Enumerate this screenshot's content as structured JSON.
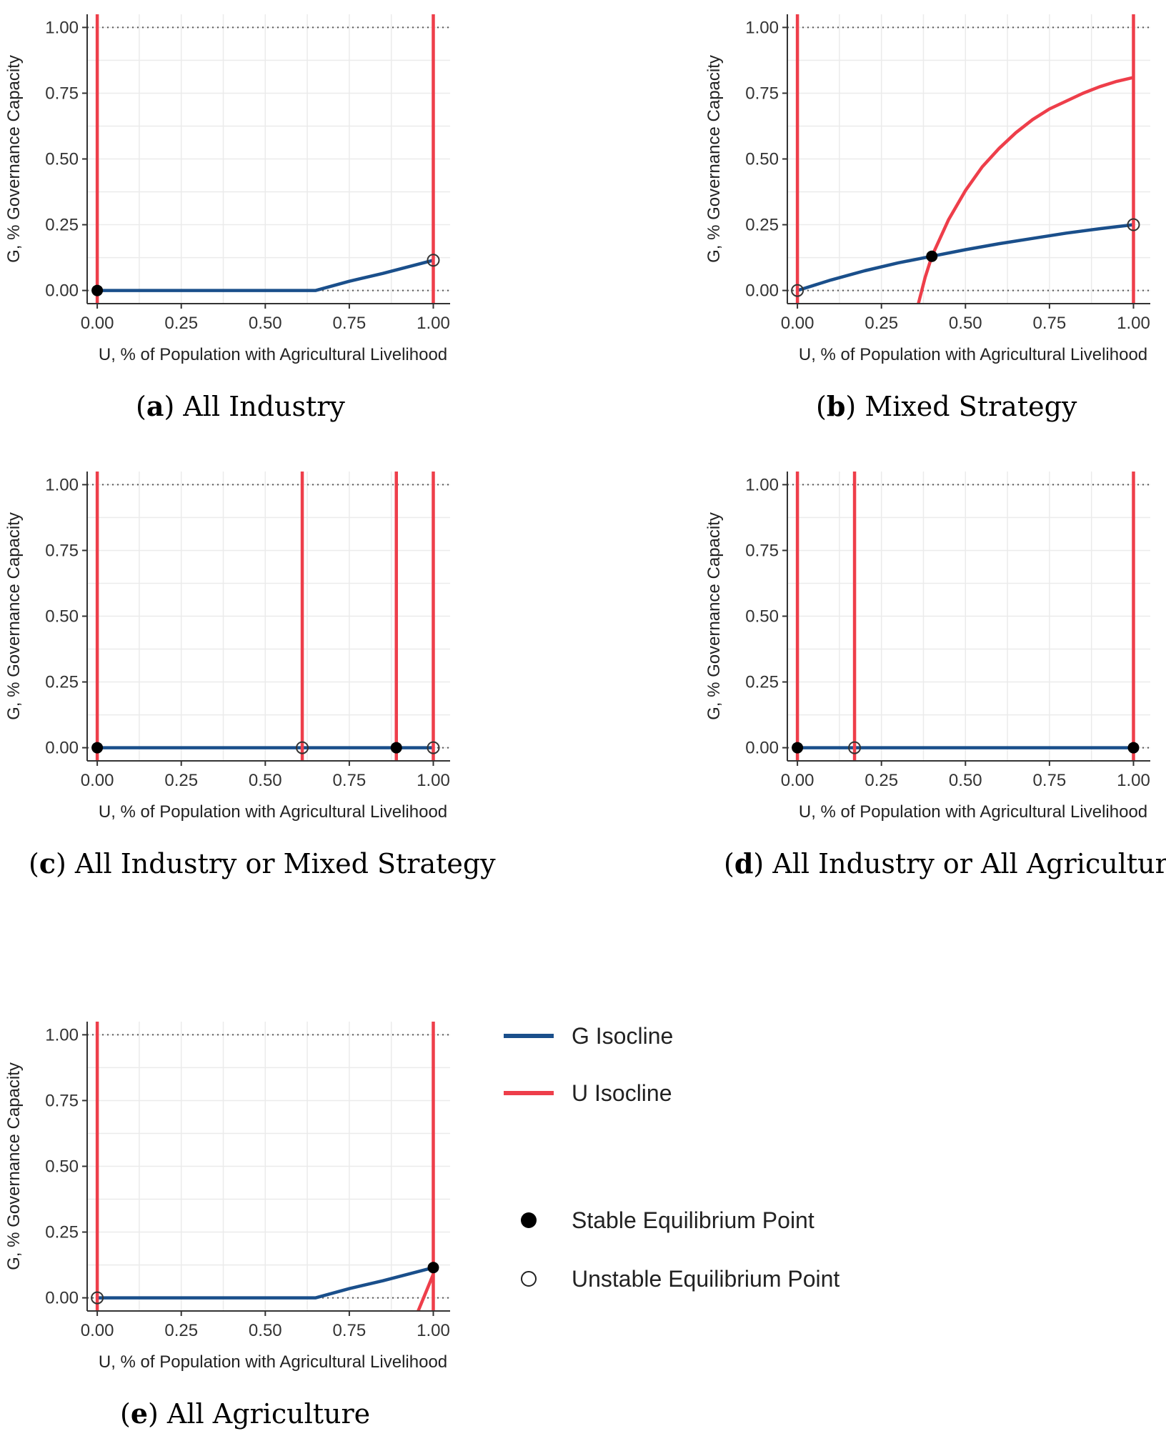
{
  "colors": {
    "g_isocline": "#1a4f8b",
    "u_isocline": "#ee3e4a",
    "grid": "#ebebeb",
    "axis": "#333333",
    "dotted": "#555555"
  },
  "legend": {
    "g_label": "G Isocline",
    "u_label": "U Isocline",
    "stable_label": "Stable Equilibrium Point",
    "unstable_label": "Unstable Equilibrium Point"
  },
  "chart_data": [
    {
      "type": "line",
      "panel": "a",
      "caption_letter": "a",
      "caption_text": "All Industry",
      "xlabel": "U, % of Population with Agricultural Livelihood",
      "ylabel": "G, % Governance Capacity",
      "xlim": [
        -0.03,
        1.05
      ],
      "ylim": [
        -0.05,
        1.05
      ],
      "xticks": [
        "0.00",
        "0.25",
        "0.50",
        "0.75",
        "1.00"
      ],
      "yticks": [
        "0.00",
        "0.25",
        "0.50",
        "0.75",
        "1.00"
      ],
      "hlines_dotted": [
        0,
        1
      ],
      "u_isocline_vertical": [
        0,
        1
      ],
      "u_isocline_curve": [],
      "g_isocline": [
        [
          0,
          0
        ],
        [
          0.65,
          0
        ],
        [
          0.75,
          0.035
        ],
        [
          0.85,
          0.065
        ],
        [
          1.0,
          0.115
        ]
      ],
      "stable_points": [
        [
          0,
          0
        ]
      ],
      "unstable_points": [
        [
          1,
          0.115
        ]
      ]
    },
    {
      "type": "line",
      "panel": "b",
      "caption_letter": "b",
      "caption_text": "Mixed Strategy",
      "xlabel": "U, % of Population with Agricultural Livelihood",
      "ylabel": "G, % Governance Capacity",
      "xlim": [
        -0.03,
        1.05
      ],
      "ylim": [
        -0.05,
        1.05
      ],
      "xticks": [
        "0.00",
        "0.25",
        "0.50",
        "0.75",
        "1.00"
      ],
      "yticks": [
        "0.00",
        "0.25",
        "0.50",
        "0.75",
        "1.00"
      ],
      "hlines_dotted": [
        0,
        1
      ],
      "u_isocline_vertical": [
        0,
        1
      ],
      "u_isocline_curve": [
        [
          0.36,
          -0.05
        ],
        [
          0.38,
          0.05
        ],
        [
          0.4,
          0.13
        ],
        [
          0.45,
          0.27
        ],
        [
          0.5,
          0.38
        ],
        [
          0.55,
          0.47
        ],
        [
          0.6,
          0.54
        ],
        [
          0.65,
          0.6
        ],
        [
          0.7,
          0.65
        ],
        [
          0.75,
          0.69
        ],
        [
          0.8,
          0.72
        ],
        [
          0.85,
          0.75
        ],
        [
          0.9,
          0.775
        ],
        [
          0.95,
          0.795
        ],
        [
          1.0,
          0.81
        ]
      ],
      "g_isocline": [
        [
          0,
          0
        ],
        [
          0.1,
          0.04
        ],
        [
          0.2,
          0.075
        ],
        [
          0.3,
          0.105
        ],
        [
          0.4,
          0.13
        ],
        [
          0.5,
          0.155
        ],
        [
          0.6,
          0.178
        ],
        [
          0.7,
          0.198
        ],
        [
          0.8,
          0.218
        ],
        [
          0.9,
          0.235
        ],
        [
          1.0,
          0.25
        ]
      ],
      "stable_points": [
        [
          0.4,
          0.13
        ]
      ],
      "unstable_points": [
        [
          0,
          0
        ],
        [
          1,
          0.25
        ]
      ]
    },
    {
      "type": "line",
      "panel": "c",
      "caption_letter": "c",
      "caption_text": "All Industry or Mixed Strategy",
      "xlabel": "U, % of Population with Agricultural Livelihood",
      "ylabel": "G, % Governance Capacity",
      "xlim": [
        -0.03,
        1.05
      ],
      "ylim": [
        -0.05,
        1.05
      ],
      "xticks": [
        "0.00",
        "0.25",
        "0.50",
        "0.75",
        "1.00"
      ],
      "yticks": [
        "0.00",
        "0.25",
        "0.50",
        "0.75",
        "1.00"
      ],
      "hlines_dotted": [
        0,
        1
      ],
      "u_isocline_vertical": [
        0,
        0.61,
        0.89,
        1
      ],
      "u_isocline_curve": [],
      "g_isocline": [
        [
          0,
          0
        ],
        [
          1,
          0
        ]
      ],
      "stable_points": [
        [
          0,
          0
        ],
        [
          0.89,
          0
        ]
      ],
      "unstable_points": [
        [
          0.61,
          0
        ],
        [
          1,
          0
        ]
      ]
    },
    {
      "type": "line",
      "panel": "d",
      "caption_letter": "d",
      "caption_text": "All Industry or All Agriculture",
      "xlabel": "U, % of Population with Agricultural Livelihood",
      "ylabel": "G, % Governance Capacity",
      "xlim": [
        -0.03,
        1.05
      ],
      "ylim": [
        -0.05,
        1.05
      ],
      "xticks": [
        "0.00",
        "0.25",
        "0.50",
        "0.75",
        "1.00"
      ],
      "yticks": [
        "0.00",
        "0.25",
        "0.50",
        "0.75",
        "1.00"
      ],
      "hlines_dotted": [
        0,
        1
      ],
      "u_isocline_vertical": [
        0,
        0.17,
        1
      ],
      "u_isocline_curve": [],
      "g_isocline": [
        [
          0,
          0
        ],
        [
          1,
          0
        ]
      ],
      "stable_points": [
        [
          0,
          0
        ],
        [
          1,
          0
        ]
      ],
      "unstable_points": [
        [
          0.17,
          0
        ]
      ]
    },
    {
      "type": "line",
      "panel": "e",
      "caption_letter": "e",
      "caption_text": "All Agriculture",
      "xlabel": "U, % of Population with Agricultural Livelihood",
      "ylabel": "G, % Governance Capacity",
      "xlim": [
        -0.03,
        1.05
      ],
      "ylim": [
        -0.05,
        1.05
      ],
      "xticks": [
        "0.00",
        "0.25",
        "0.50",
        "0.75",
        "1.00"
      ],
      "yticks": [
        "0.00",
        "0.25",
        "0.50",
        "0.75",
        "1.00"
      ],
      "hlines_dotted": [
        0,
        1
      ],
      "u_isocline_vertical": [
        0,
        1
      ],
      "u_isocline_curve": [
        [
          0.955,
          -0.05
        ],
        [
          1.0,
          0.09
        ]
      ],
      "g_isocline": [
        [
          0,
          0
        ],
        [
          0.65,
          0
        ],
        [
          0.75,
          0.035
        ],
        [
          0.85,
          0.065
        ],
        [
          1.0,
          0.115
        ]
      ],
      "stable_points": [
        [
          1,
          0.115
        ]
      ],
      "unstable_points": [
        [
          0,
          0
        ]
      ]
    }
  ]
}
